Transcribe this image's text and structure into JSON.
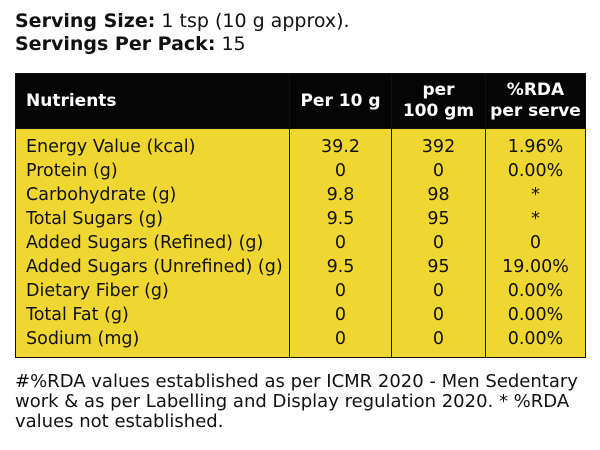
{
  "serving": {
    "size_label": "Serving Size:",
    "size_value": "1 tsp (10 g approx).",
    "per_pack_label": "Servings Per Pack:",
    "per_pack_value": "15"
  },
  "table": {
    "headers": {
      "nutrients": "Nutrients",
      "per10g": "Per 10 g",
      "per100_line1": "per",
      "per100_line2": "100 gm",
      "rda_line1": "%RDA",
      "rda_line2": "per serve"
    },
    "rows": [
      {
        "name": "Energy Value (kcal)",
        "per10": "39.2",
        "per100": "392",
        "rda": "1.96%"
      },
      {
        "name": "Protein (g)",
        "per10": "0",
        "per100": "0",
        "rda": "0.00%"
      },
      {
        "name": "Carbohydrate (g)",
        "per10": "9.8",
        "per100": "98",
        "rda": "*"
      },
      {
        "name": "Total Sugars (g)",
        "per10": "9.5",
        "per100": "95",
        "rda": "*"
      },
      {
        "name": "Added Sugars (Refined) (g)",
        "per10": "0",
        "per100": "0",
        "rda": "0"
      },
      {
        "name": "Added Sugars (Unrefined) (g)",
        "per10": "9.5",
        "per100": "95",
        "rda": "19.00%"
      },
      {
        "name": "Dietary Fiber (g)",
        "per10": "0",
        "per100": "0",
        "rda": "0.00%"
      },
      {
        "name": "Total Fat (g)",
        "per10": "0",
        "per100": "0",
        "rda": "0.00%"
      },
      {
        "name": "Sodium (mg)",
        "per10": "0",
        "per100": "0",
        "rda": "0.00%"
      }
    ]
  },
  "footnote": "#%RDA values established as per ICMR 2020 - Men Sedentary work & as per Labelling and Display regulation 2020. * %RDA values not established.",
  "colors": {
    "header_bg": "#050505",
    "body_bg": "#f0d630",
    "text": "#111111"
  }
}
